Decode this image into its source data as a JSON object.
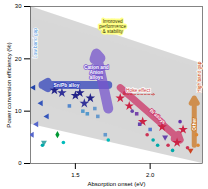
{
  "chart_data": {
    "type": "scatter",
    "xlabel": "Absorption onset (eV)",
    "ylabel": "Power conversion efficiency (%)",
    "xlim": [
      1.2,
      2.35
    ],
    "ylim": [
      0,
      30
    ],
    "xticks": [
      1.5,
      {
        "value": 2.0,
        "label": "2.0"
      }
    ],
    "yticks": [
      0,
      10,
      20,
      30
    ],
    "annotations": [
      {
        "text": "Low band gap",
        "color": "#5599dd"
      },
      {
        "text": "High band gap",
        "color": "#cc4400"
      },
      {
        "text": "Improved\nperformance\n& stability",
        "color": "#333300"
      },
      {
        "text": "Hoke effect",
        "color": "#cc3333"
      }
    ],
    "arrows": [
      {
        "text": "Sn/Pb alloy",
        "color": "#3344bb"
      },
      {
        "text": "Cation and\nAnion\nalloys",
        "color": "#7755cc"
      },
      {
        "text": "Bi alloys",
        "color": "#cc3366"
      },
      {
        "text": "Other",
        "color": "#cc7722"
      }
    ],
    "points": [
      {
        "x": 1.22,
        "y": 14.5,
        "marker": "triangle-left",
        "color": "#2244aa"
      },
      {
        "x": 1.27,
        "y": 11.5,
        "marker": "triangle-left",
        "color": "#3355bb"
      },
      {
        "x": 1.31,
        "y": 9.0,
        "marker": "triangle-left",
        "color": "#3355bb"
      },
      {
        "x": 1.24,
        "y": 7.5,
        "marker": "triangle-left",
        "color": "#5566cc"
      },
      {
        "x": 1.21,
        "y": 5.5,
        "marker": "triangle-left",
        "color": "#5566cc"
      },
      {
        "x": 1.29,
        "y": 4.0,
        "marker": "triangle-down",
        "color": "#44aaaa"
      },
      {
        "x": 1.36,
        "y": 14.0,
        "marker": "star",
        "color": "#222288"
      },
      {
        "x": 1.41,
        "y": 13.5,
        "marker": "star",
        "color": "#333399"
      },
      {
        "x": 1.46,
        "y": 11.0,
        "marker": "square",
        "color": "#5588cc"
      },
      {
        "x": 1.5,
        "y": 13.0,
        "marker": "star",
        "color": "#222288"
      },
      {
        "x": 1.53,
        "y": 13.5,
        "marker": "star",
        "color": "#222288"
      },
      {
        "x": 1.56,
        "y": 11.5,
        "marker": "star",
        "color": "#333399"
      },
      {
        "x": 1.55,
        "y": 10.0,
        "marker": "square",
        "color": "#5599cc"
      },
      {
        "x": 1.58,
        "y": 9.5,
        "marker": "square",
        "color": "#5599cc"
      },
      {
        "x": 1.6,
        "y": 12.5,
        "marker": "star",
        "color": "#222288"
      },
      {
        "x": 1.63,
        "y": 10.5,
        "marker": "square",
        "color": "#6699cc"
      },
      {
        "x": 1.65,
        "y": 9.0,
        "marker": "square",
        "color": "#6699cc"
      },
      {
        "x": 1.68,
        "y": 11.0,
        "marker": "plus",
        "color": "#009900"
      },
      {
        "x": 1.7,
        "y": 5.5,
        "marker": "square",
        "color": "#6699cc"
      },
      {
        "x": 1.72,
        "y": 4.5,
        "marker": "circle",
        "color": "#00bbbb"
      },
      {
        "x": 1.28,
        "y": 3.5,
        "marker": "circle",
        "color": "#00aaaa"
      },
      {
        "x": 1.38,
        "y": 5.5,
        "marker": "diamond",
        "color": "#009933"
      },
      {
        "x": 1.42,
        "y": 4.0,
        "marker": "circle",
        "color": "#00bbbb"
      },
      {
        "x": 1.8,
        "y": 12.5,
        "marker": "star",
        "color": "#cc2244"
      },
      {
        "x": 1.83,
        "y": 13.5,
        "marker": "circle",
        "color": "#cc3355"
      },
      {
        "x": 1.86,
        "y": 11.0,
        "marker": "star",
        "color": "#cc2244"
      },
      {
        "x": 1.88,
        "y": 10.0,
        "marker": "circle",
        "color": "#6644aa"
      },
      {
        "x": 1.91,
        "y": 9.5,
        "marker": "square",
        "color": "#7744aa"
      },
      {
        "x": 1.93,
        "y": 7.5,
        "marker": "square",
        "color": "#6644aa"
      },
      {
        "x": 1.95,
        "y": 8.0,
        "marker": "star",
        "color": "#cc2244"
      },
      {
        "x": 1.98,
        "y": 5.5,
        "marker": "circle",
        "color": "#cc3355"
      },
      {
        "x": 2.0,
        "y": 6.5,
        "marker": "square",
        "color": "#5577cc"
      },
      {
        "x": 2.02,
        "y": 4.5,
        "marker": "circle",
        "color": "#00aaaa"
      },
      {
        "x": 2.05,
        "y": 3.5,
        "marker": "circle",
        "color": "#00aaaa"
      },
      {
        "x": 2.08,
        "y": 7.0,
        "marker": "star",
        "color": "#cc2244"
      },
      {
        "x": 2.1,
        "y": 5.0,
        "marker": "triangle-down",
        "color": "#6644aa"
      },
      {
        "x": 2.12,
        "y": 3.5,
        "marker": "circle",
        "color": "#cc3355"
      },
      {
        "x": 2.15,
        "y": 2.5,
        "marker": "circle",
        "color": "#00aaaa"
      },
      {
        "x": 2.18,
        "y": 4.0,
        "marker": "star",
        "color": "#cc2244"
      },
      {
        "x": 2.2,
        "y": 8.0,
        "marker": "circle",
        "color": "#6633aa"
      },
      {
        "x": 2.22,
        "y": 6.5,
        "marker": "star",
        "color": "#cc2244"
      },
      {
        "x": 2.25,
        "y": 3.0,
        "marker": "circle",
        "color": "#cc3355"
      },
      {
        "x": 2.27,
        "y": 2.5,
        "marker": "triangle-down",
        "color": "#cc4422"
      },
      {
        "x": 2.29,
        "y": 7.5,
        "marker": "circle",
        "color": "#dd8833"
      },
      {
        "x": 2.31,
        "y": 5.5,
        "marker": "circle",
        "color": "#dd8833"
      },
      {
        "x": 2.32,
        "y": 3.5,
        "marker": "circle",
        "color": "#dd8833"
      }
    ]
  }
}
